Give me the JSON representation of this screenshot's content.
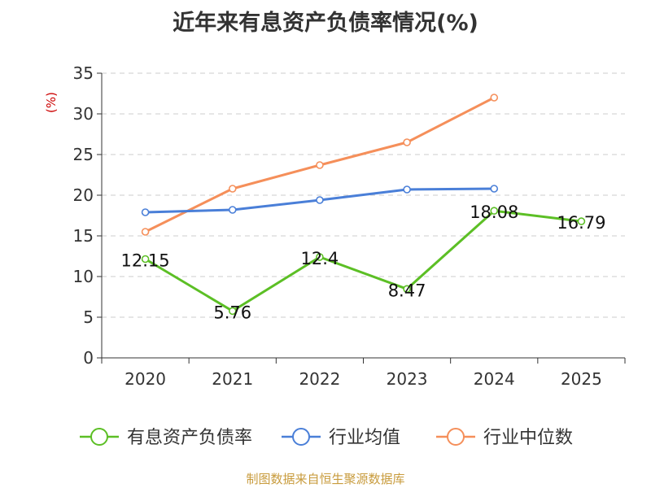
{
  "chart_data": {
    "type": "line",
    "title": "近年来有息资产负债率情况(%)",
    "ylabel": "(%)",
    "categories": [
      "2020",
      "2021",
      "2022",
      "2023",
      "2024",
      "2025"
    ],
    "ylim": [
      0,
      35
    ],
    "yticks": [
      0,
      5,
      10,
      15,
      20,
      25,
      30,
      35
    ],
    "grid": true,
    "legend_position": "bottom",
    "series": [
      {
        "name": "有息资产负债率",
        "color": "#5cbf25",
        "values": [
          12.15,
          5.76,
          12.4,
          8.47,
          18.08,
          16.79
        ],
        "labels": [
          "12.15",
          "5.76",
          "12.4",
          "8.47",
          "18.08",
          "16.79"
        ]
      },
      {
        "name": "行业均值",
        "color": "#4a7fd8",
        "values": [
          17.9,
          18.2,
          19.4,
          20.7,
          20.8,
          null
        ]
      },
      {
        "name": "行业中位数",
        "color": "#f58f5a",
        "values": [
          15.5,
          20.8,
          23.7,
          26.5,
          32.0,
          null
        ]
      }
    ]
  },
  "source": "制图数据来自恒生聚源数据库"
}
